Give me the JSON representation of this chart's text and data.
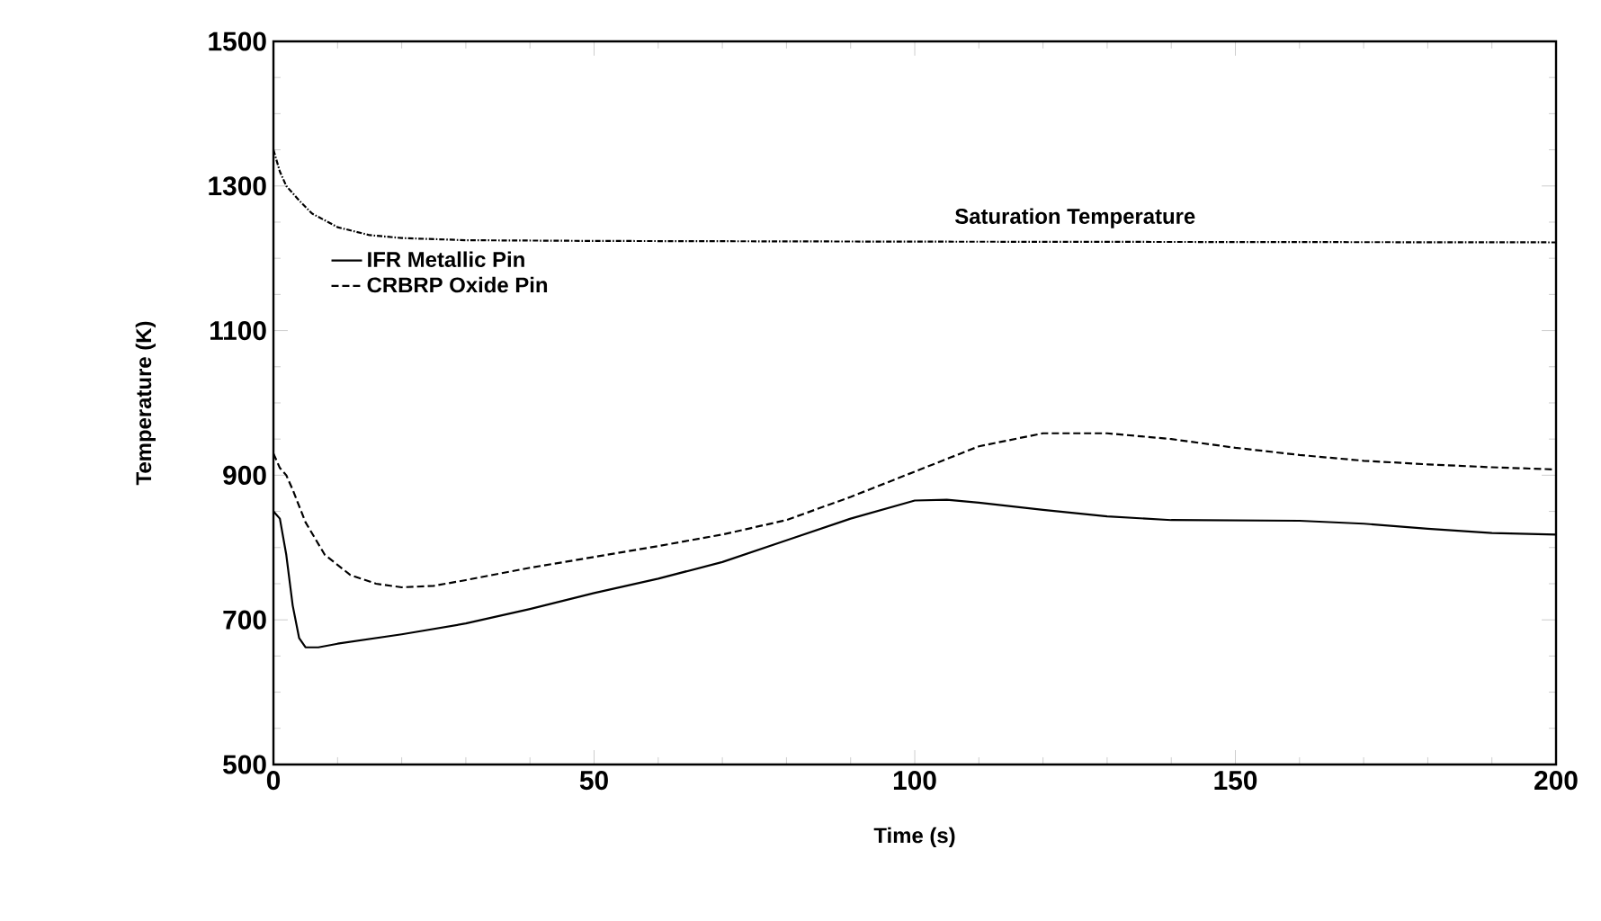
{
  "chart_data": {
    "type": "line",
    "xlabel": "Time (s)",
    "ylabel": "Temperature (K)",
    "xlim": [
      0,
      200
    ],
    "xticks": [
      0,
      50,
      100,
      150,
      200
    ],
    "ylim": [
      500,
      1500
    ],
    "yticks": [
      500,
      700,
      900,
      1100,
      1300,
      1500
    ],
    "legend": "top left",
    "grid": false,
    "annotations": [
      {
        "text": "Saturation Temperature",
        "x": 125,
        "y": 1223
      }
    ],
    "series": [
      {
        "name": "IFR Metallic Pin",
        "color": "#000000",
        "line_style": "solid",
        "x": [
          0,
          1,
          2,
          3,
          4,
          5,
          7,
          10,
          20,
          30,
          40,
          50,
          60,
          70,
          80,
          90,
          100,
          105,
          110,
          120,
          130,
          140,
          160,
          170,
          180,
          190,
          200
        ],
        "values": [
          850,
          840,
          790,
          720,
          675,
          662,
          662,
          667,
          680,
          695,
          715,
          737,
          757,
          780,
          810,
          840,
          865,
          866,
          862,
          852,
          843,
          838,
          837,
          833,
          826,
          820,
          818
        ]
      },
      {
        "name": "CRBRP Oxide Pin",
        "color": "#000000",
        "line_style": "dashed",
        "x": [
          0,
          1,
          2,
          3,
          5,
          8,
          12,
          16,
          20,
          25,
          30,
          40,
          50,
          60,
          70,
          80,
          90,
          100,
          110,
          120,
          130,
          140,
          150,
          160,
          170,
          180,
          190,
          200
        ],
        "values": [
          930,
          910,
          900,
          880,
          835,
          790,
          762,
          750,
          745,
          747,
          755,
          772,
          787,
          802,
          818,
          838,
          870,
          905,
          940,
          958,
          958,
          950,
          938,
          928,
          920,
          915,
          911,
          908
        ]
      },
      {
        "color": "#000000",
        "line_style": "dotted",
        "x": [
          0,
          1,
          2,
          4,
          6,
          10,
          15,
          20,
          30,
          50,
          100,
          200
        ],
        "values": [
          1350,
          1320,
          1300,
          1280,
          1262,
          1243,
          1232,
          1228,
          1225,
          1224,
          1223,
          1222
        ]
      }
    ]
  }
}
